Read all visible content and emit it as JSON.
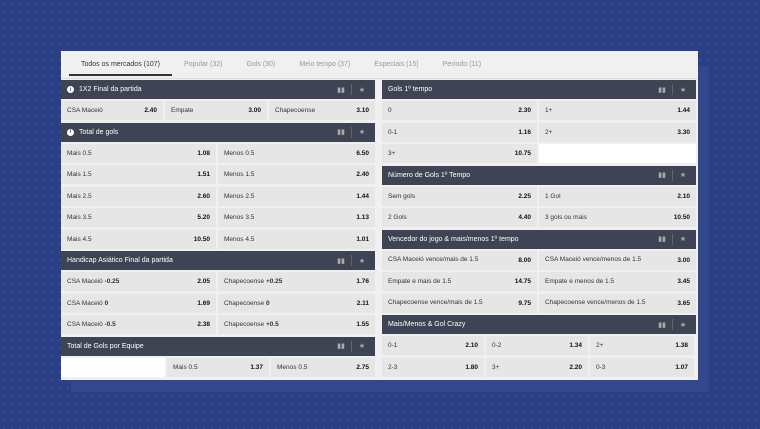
{
  "tabs": [
    {
      "label": "Todos os mercados (107)",
      "active": true
    },
    {
      "label": "Popular (32)",
      "active": false
    },
    {
      "label": "Gols (30)",
      "active": false
    },
    {
      "label": "Meio tempo (37)",
      "active": false
    },
    {
      "label": "Especiais (15)",
      "active": false
    },
    {
      "label": "Período (11)",
      "active": false
    }
  ],
  "left": {
    "m1": {
      "title": "1X2 Final da partida",
      "cells": [
        [
          "CSA Maceió",
          "2.40"
        ],
        [
          "Empate",
          "3.00"
        ],
        [
          "Chapecoense",
          "3.10"
        ]
      ]
    },
    "m2": {
      "title": "Total de gols",
      "rows": [
        [
          [
            "Mais",
            "0.5",
            "1.08"
          ],
          [
            "Menos",
            "0.5",
            "6.50"
          ]
        ],
        [
          [
            "Mais",
            "1.5",
            "1.51"
          ],
          [
            "Menos",
            "1.5",
            "2.40"
          ]
        ],
        [
          [
            "Mais",
            "2.5",
            "2.60"
          ],
          [
            "Menos",
            "2.5",
            "1.44"
          ]
        ],
        [
          [
            "Mais",
            "3.5",
            "5.20"
          ],
          [
            "Menos",
            "3.5",
            "1.13"
          ]
        ],
        [
          [
            "Mais",
            "4.5",
            "10.50"
          ],
          [
            "Menos",
            "4.5",
            "1.01"
          ]
        ]
      ]
    },
    "m3": {
      "title": "Handicap Asiático Final da partida",
      "rows": [
        [
          [
            "CSA Maceió",
            "-0.25",
            "2.05"
          ],
          [
            "Chapecoense",
            "+0.25",
            "1.76"
          ]
        ],
        [
          [
            "CSA Maceió",
            "0",
            "1.69"
          ],
          [
            "Chapecoense",
            "0",
            "2.11"
          ]
        ],
        [
          [
            "CSA Maceió",
            "-0.5",
            "2.38"
          ],
          [
            "Chapecoense",
            "+0.5",
            "1.55"
          ]
        ]
      ]
    },
    "m4": {
      "title": "Total de Gols por Equipe",
      "cells": [
        [
          "Mais",
          "0.5",
          "1.37"
        ],
        [
          "Menos",
          "0.5",
          "2.75"
        ]
      ]
    }
  },
  "right": {
    "m1": {
      "title": "Gols 1º tempo",
      "rows": [
        [
          [
            "0",
            "2.30"
          ],
          [
            "1+",
            "1.44"
          ]
        ],
        [
          [
            "0-1",
            "1.16"
          ],
          [
            "2+",
            "3.30"
          ]
        ],
        [
          [
            "3+",
            "10.75"
          ]
        ]
      ]
    },
    "m2": {
      "title": "Número de Gols 1º Tempo",
      "rows": [
        [
          [
            "Sem gols",
            "2.25"
          ],
          [
            "1 Gol",
            "2.10"
          ]
        ],
        [
          [
            "2 Gols",
            "4.40"
          ],
          [
            "3 gols ou mais",
            "10.50"
          ]
        ]
      ]
    },
    "m3": {
      "title": "Vencedor do jogo & mais/menos 1º tempo",
      "rows": [
        [
          [
            "CSA Maceió vence/mais de 1.5",
            "8.00"
          ],
          [
            "CSA Maceió vence/menos de 1.5",
            "3.00"
          ]
        ],
        [
          [
            "Empate e mais de 1.5",
            "14.75"
          ],
          [
            "Empate e menos de 1.5",
            "3.45"
          ]
        ],
        [
          [
            "Chapecoense vence/mais de 1.5",
            "9.75"
          ],
          [
            "Chapecoense vence/menos de 1.5",
            "3.65"
          ]
        ]
      ]
    },
    "m4": {
      "title": "Mais/Menos & Gol Crazy",
      "rows": [
        [
          [
            "0-1",
            "2.10"
          ],
          [
            "0-2",
            "1.34"
          ],
          [
            "2+",
            "1.38"
          ]
        ],
        [
          [
            "2-3",
            "1.80"
          ],
          [
            "3+",
            "2.20"
          ],
          [
            "0-3",
            "1.07"
          ]
        ]
      ]
    }
  },
  "icons": {
    "info": "i",
    "stats": "▮▮",
    "star": "★"
  },
  "colors": {
    "header": "#3e4453",
    "background": "#2a3f86",
    "cell": "#e6e6e6"
  }
}
